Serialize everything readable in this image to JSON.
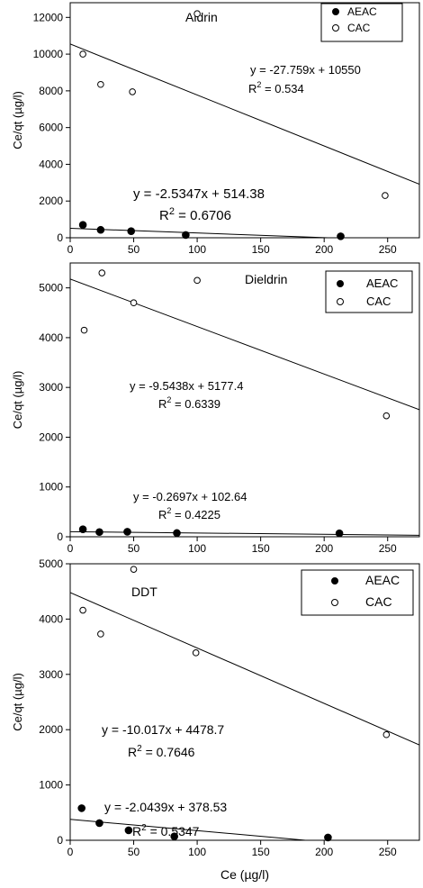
{
  "figure": {
    "shared_xlabel": "Ce (µg/l)"
  },
  "chart_data": [
    {
      "type": "scatter",
      "title": "Aldrin",
      "xlabel": "",
      "ylabel": "Ce/qt (µg/l)",
      "xlim": [
        0,
        275
      ],
      "ylim": [
        0,
        12800
      ],
      "xticks": [
        0,
        50,
        100,
        150,
        200,
        250
      ],
      "yticks": [
        0,
        2000,
        4000,
        6000,
        8000,
        10000,
        12000
      ],
      "legend": {
        "placement": "top-right",
        "entries": [
          "AEAC",
          "CAC"
        ]
      },
      "series": [
        {
          "name": "AEAC",
          "marker": "filled-circle",
          "x": [
            10,
            24,
            48,
            91,
            213
          ],
          "y": [
            700,
            430,
            360,
            150,
            80
          ],
          "fit": {
            "slope": -2.5347,
            "intercept": 514.38
          },
          "equation": "y = -2.5347x + 514.38",
          "r2_prefix": "R",
          "r2_sup": "2",
          "r2_value": " = 0.6706"
        },
        {
          "name": "CAC",
          "marker": "open-circle",
          "x": [
            10,
            24,
            49,
            100,
            248
          ],
          "y": [
            10000,
            8350,
            7950,
            12200,
            2300
          ],
          "fit": {
            "slope": -27.759,
            "intercept": 10550
          },
          "equation": "y = -27.759x + 10550",
          "r2_prefix": "R",
          "r2_sup": "2",
          "r2_value": " = 0.534"
        }
      ],
      "grid": false
    },
    {
      "type": "scatter",
      "title": "Dieldrin",
      "xlabel": "",
      "ylabel": "Ce/qt (µg/l)",
      "xlim": [
        0,
        275
      ],
      "ylim": [
        0,
        5500
      ],
      "xticks": [
        0,
        50,
        100,
        150,
        200,
        250
      ],
      "yticks": [
        0,
        1000,
        2000,
        3000,
        4000,
        5000
      ],
      "legend": {
        "placement": "top-right",
        "entries": [
          "AEAC",
          "CAC"
        ]
      },
      "series": [
        {
          "name": "AEAC",
          "marker": "filled-circle",
          "x": [
            10,
            23,
            45,
            84,
            212
          ],
          "y": [
            150,
            95,
            100,
            75,
            70
          ],
          "fit": {
            "slope": -0.2697,
            "intercept": 102.64
          },
          "equation": "y = -0.2697x + 102.64",
          "r2_prefix": "R",
          "r2_sup": "2",
          "r2_value": " = 0.4225"
        },
        {
          "name": "CAC",
          "marker": "open-circle",
          "x": [
            11,
            25,
            50,
            100,
            249
          ],
          "y": [
            4150,
            5300,
            4700,
            5150,
            2430
          ],
          "fit": {
            "slope": -9.5438,
            "intercept": 5177.4
          },
          "equation": "y = -9.5438x + 5177.4",
          "r2_prefix": "R",
          "r2_sup": "2",
          "r2_value": " = 0.6339"
        }
      ],
      "grid": false
    },
    {
      "type": "scatter",
      "title": "DDT",
      "xlabel": "Ce (µg/l)",
      "ylabel": "Ce/qt (µg/l)",
      "xlim": [
        0,
        275
      ],
      "ylim": [
        0,
        5000
      ],
      "xticks": [
        0,
        50,
        100,
        150,
        200,
        250
      ],
      "yticks": [
        0,
        1000,
        2000,
        3000,
        4000,
        5000
      ],
      "legend": {
        "placement": "top-right",
        "entries": [
          "AEAC",
          "CAC"
        ]
      },
      "series": [
        {
          "name": "AEAC",
          "marker": "filled-circle",
          "x": [
            9,
            23,
            46,
            82,
            203
          ],
          "y": [
            580,
            310,
            180,
            70,
            50
          ],
          "fit": {
            "slope": -2.0439,
            "intercept": 378.53
          },
          "equation": "y = -2.0439x + 378.53",
          "r2_prefix": "R",
          "r2_sup": "2",
          "r2_value": " = 0.5347"
        },
        {
          "name": "CAC",
          "marker": "open-circle",
          "x": [
            10,
            24,
            50,
            99,
            249
          ],
          "y": [
            4160,
            3730,
            4900,
            3390,
            1910
          ],
          "fit": {
            "slope": -10.017,
            "intercept": 4478.7
          },
          "equation": "y = -10.017x + 4478.7",
          "r2_prefix": "R",
          "r2_sup": "2",
          "r2_value": " = 0.7646"
        }
      ],
      "grid": false
    }
  ]
}
